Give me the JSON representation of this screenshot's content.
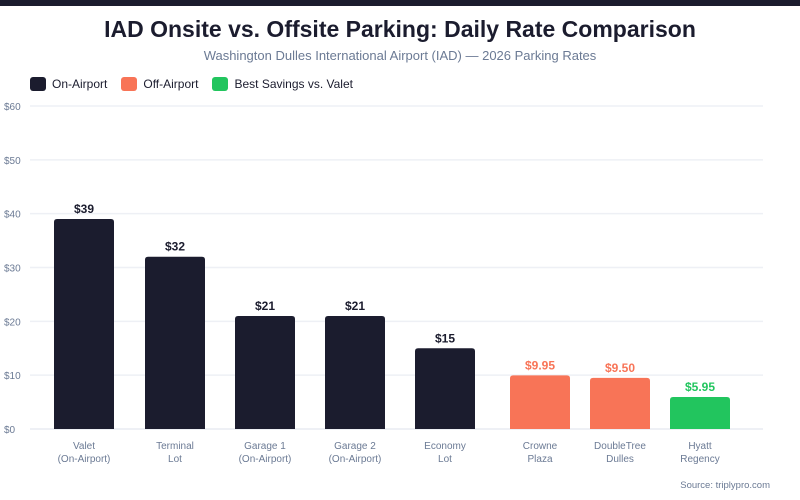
{
  "colors": {
    "on_airport": "#1b1c2e",
    "off_airport": "#f87457",
    "best": "#22c55e",
    "grid": "#eef0f5",
    "axis_text": "#6b7a94"
  },
  "chart_data": {
    "type": "bar",
    "title": "IAD Onsite vs. Offsite Parking: Daily Rate Comparison",
    "subtitle": "Washington Dulles International Airport (IAD) — 2026 Parking Rates",
    "ylim": [
      0,
      60
    ],
    "yticks": [
      "$0",
      "$10",
      "$20",
      "$30",
      "$40",
      "$50",
      "$60"
    ],
    "ytick_values": [
      0,
      10,
      20,
      30,
      40,
      50,
      60
    ],
    "grid": true,
    "legend_position": "top-left",
    "legend": [
      {
        "label": "On-Airport",
        "group": "on_airport"
      },
      {
        "label": "Off-Airport",
        "group": "off_airport"
      },
      {
        "label": "Best Savings vs. Valet",
        "group": "best"
      }
    ],
    "bars": [
      {
        "category": [
          "Valet",
          "(On-Airport)"
        ],
        "value": 39,
        "label": "$39",
        "group": "on_airport"
      },
      {
        "category": [
          "Terminal",
          "Lot"
        ],
        "value": 32,
        "label": "$32",
        "group": "on_airport"
      },
      {
        "category": [
          "Garage 1",
          "(On-Airport)"
        ],
        "value": 21,
        "label": "$21",
        "group": "on_airport"
      },
      {
        "category": [
          "Garage 2",
          "(On-Airport)"
        ],
        "value": 21,
        "label": "$21",
        "group": "on_airport"
      },
      {
        "category": [
          "Economy",
          "Lot"
        ],
        "value": 15,
        "label": "$15",
        "group": "on_airport"
      },
      {
        "category": [
          "Crowne",
          "Plaza"
        ],
        "value": 9.95,
        "label": "$9.95",
        "group": "off_airport"
      },
      {
        "category": [
          "DoubleTree",
          "Dulles"
        ],
        "value": 9.5,
        "label": "$9.50",
        "group": "off_airport"
      },
      {
        "category": [
          "Hyatt",
          "Regency"
        ],
        "value": 5.95,
        "label": "$5.95",
        "group": "best"
      }
    ],
    "source": "Source: triplypro.com"
  }
}
